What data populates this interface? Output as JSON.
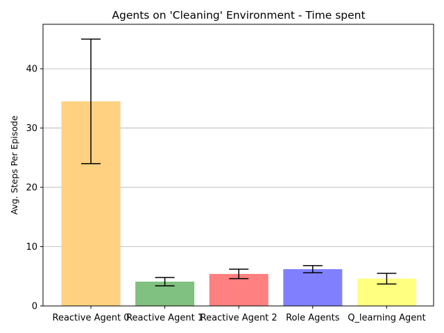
{
  "chart_data": {
    "type": "bar",
    "title": "Agents on 'Cleaning' Environment - Time spent",
    "xlabel": "",
    "ylabel": "Avg. Steps Per Episode",
    "categories": [
      "Reactive Agent 0",
      "Reactive Agent 1",
      "Reactive Agent 2",
      "Role Agents",
      "Q_learning Agent"
    ],
    "values": [
      34.5,
      4.1,
      5.4,
      6.2,
      4.6
    ],
    "error": [
      10.5,
      0.7,
      0.8,
      0.6,
      0.9
    ],
    "colors": [
      "#FFD180",
      "#80C080",
      "#FF8080",
      "#8080FF",
      "#FFFF80"
    ],
    "ylim": [
      0,
      47.5
    ],
    "yticks": [
      0,
      10,
      20,
      30,
      40
    ],
    "grid": "horizontal"
  }
}
